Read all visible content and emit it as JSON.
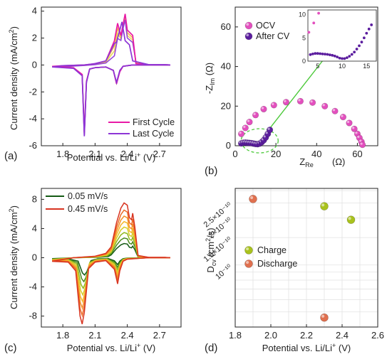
{
  "chart_data": [
    {
      "panel_label": "(a)",
      "type": "line",
      "xlabel": "Potential vs. Li/Li⁺ (V)",
      "ylabel": "Current density (mA/cm²)",
      "xlim": [
        1.6,
        2.9
      ],
      "ylim": [
        -6,
        4.3
      ],
      "xticks": [
        1.8,
        2.1,
        2.4,
        2.7
      ],
      "yticks": [
        -6,
        -4,
        -2,
        0,
        2,
        4
      ],
      "legend": "bottom-right",
      "gradient_colors": [
        "#e81aa6",
        "#f2a640",
        "#e8d84a",
        "#8d35d6"
      ],
      "series": [
        {
          "name": "First Cycle",
          "color": "#e81aa6",
          "x": [
            1.7,
            1.9,
            1.98,
            2.0,
            2.02,
            2.05,
            2.1,
            2.2,
            2.27,
            2.3,
            2.33,
            2.36,
            2.4,
            2.45,
            2.6,
            2.8,
            2.75,
            2.6,
            2.48,
            2.45,
            2.4,
            2.38,
            2.36,
            2.34,
            2.31,
            2.28,
            2.2,
            2.1,
            2.0,
            1.8,
            1.7
          ],
          "y": [
            -0.1,
            -0.2,
            -0.7,
            -5.0,
            -1.2,
            -0.3,
            -0.2,
            -0.15,
            -0.4,
            -1.4,
            -0.5,
            -0.1,
            -0.05,
            0,
            0,
            0,
            0.02,
            0.02,
            0.1,
            2.2,
            2.6,
            3.8,
            3.0,
            2.2,
            3.1,
            1.8,
            0.3,
            0.1,
            0.0,
            -0.05,
            -0.1
          ]
        },
        {
          "name": "Last Cycle",
          "color": "#8d35d6",
          "x": [
            1.7,
            1.9,
            1.98,
            2.0,
            2.02,
            2.05,
            2.1,
            2.2,
            2.27,
            2.3,
            2.33,
            2.36,
            2.4,
            2.45,
            2.6,
            2.8,
            2.75,
            2.6,
            2.45,
            2.42,
            2.38,
            2.35,
            2.33,
            2.3,
            2.28,
            2.2,
            2.1,
            2.0,
            1.8,
            1.7
          ],
          "y": [
            -0.15,
            -0.25,
            -0.8,
            -5.3,
            -1.3,
            -0.3,
            -0.2,
            -0.15,
            -0.4,
            -1.3,
            -0.4,
            -0.1,
            -0.05,
            0,
            0,
            0,
            0.02,
            0.02,
            0.3,
            1.5,
            1.8,
            3.2,
            2.6,
            1.7,
            1.6,
            0.3,
            0.1,
            0.0,
            -0.05,
            -0.15
          ]
        }
      ]
    },
    {
      "panel_label": "(b)",
      "type": "scatter",
      "xlabel": "Z_Re (Ω)",
      "ylabel": "-Z_Im (Ω)",
      "xlim": [
        0,
        70
      ],
      "ylim": [
        0,
        70
      ],
      "xticks": [
        0,
        20,
        40,
        60
      ],
      "yticks": [
        0,
        20,
        40,
        60
      ],
      "legend": "top-left",
      "series": [
        {
          "name": "OCV",
          "color": "#e34fbe",
          "x": [
            3,
            5,
            7,
            10,
            14,
            19,
            25,
            32,
            38,
            44,
            49,
            53,
            56,
            58.5,
            60,
            61,
            62,
            62.5
          ],
          "y": [
            6,
            9,
            12,
            15.5,
            18.5,
            20.5,
            22,
            22.5,
            21.8,
            20,
            17.5,
            14.5,
            11.5,
            8.5,
            6,
            4,
            2,
            0.5
          ]
        },
        {
          "name": "After CV",
          "color": "#5b1d9e",
          "x": [
            3,
            4,
            5,
            6,
            7,
            8,
            9,
            10,
            11,
            12,
            13,
            14,
            15,
            16,
            17
          ],
          "y": [
            1.2,
            1.5,
            1.6,
            1.5,
            1.4,
            1.3,
            1.1,
            0.9,
            0.8,
            1.1,
            1.8,
            2.8,
            4.2,
            6,
            8
          ]
        }
      ],
      "inset": {
        "xlim": [
          3,
          17
        ],
        "ylim": [
          0,
          11
        ],
        "xticks": [
          5,
          10,
          15
        ],
        "yticks": [
          0,
          5,
          10
        ],
        "series": [
          {
            "name": "OCV",
            "color": "#e34fbe",
            "x": [
              3.2,
              4.2,
              5.2
            ],
            "y": [
              6.2,
              8.2,
              10.3
            ]
          },
          {
            "name": "After CV",
            "color": "#5b1d9e",
            "x": [
              3.5,
              4,
              4.5,
              5,
              5.5,
              6,
              6.5,
              7,
              7.5,
              8,
              8.5,
              9,
              9.5,
              10,
              10.5,
              11,
              11.5,
              12,
              12.5,
              13,
              13.5,
              14,
              14.5,
              15,
              15.5,
              16
            ],
            "y": [
              1.4,
              1.55,
              1.65,
              1.65,
              1.6,
              1.55,
              1.5,
              1.45,
              1.35,
              1.25,
              1.1,
              0.9,
              0.65,
              0.55,
              0.55,
              0.75,
              1.05,
              1.45,
              1.95,
              2.6,
              3.3,
              4.1,
              5.0,
              6.0,
              6.9,
              7.8
            ]
          }
        ]
      }
    },
    {
      "panel_label": "(c)",
      "type": "line",
      "xlabel": "Potential vs. Li/Li⁺ (V)",
      "ylabel": "Current density (mA/cm²)",
      "xlim": [
        1.6,
        2.9
      ],
      "ylim": [
        -9.5,
        9.5
      ],
      "xticks": [
        1.8,
        2.1,
        2.4,
        2.7
      ],
      "yticks": [
        -8,
        -4,
        0,
        4,
        8
      ],
      "legend": "top-left",
      "series": [
        {
          "name": "0.05 mV/s",
          "color": "#145a14",
          "scale": 0.26,
          "shift": -0.1
        },
        {
          "name": "",
          "color": "#4a8a1e",
          "scale": 0.36,
          "shift": -0.08
        },
        {
          "name": "",
          "color": "#90b820",
          "scale": 0.46,
          "shift": -0.06
        },
        {
          "name": "",
          "color": "#d6cd2a",
          "scale": 0.56,
          "shift": -0.045
        },
        {
          "name": "",
          "color": "#f5b82a",
          "scale": 0.66,
          "shift": -0.03
        },
        {
          "name": "",
          "color": "#f3922a",
          "scale": 0.76,
          "shift": -0.02
        },
        {
          "name": "",
          "color": "#ec6a24",
          "scale": 0.87,
          "shift": -0.01
        },
        {
          "name": "0.45 mV/s",
          "color": "#d83420",
          "scale": 1.0,
          "shift": 0
        }
      ],
      "base_curve": {
        "x": [
          1.7,
          1.85,
          1.92,
          1.96,
          1.98,
          2.0,
          2.04,
          2.1,
          2.2,
          2.28,
          2.31,
          2.33,
          2.36,
          2.4,
          2.5,
          2.6,
          2.8,
          2.75,
          2.6,
          2.5,
          2.47,
          2.45,
          2.44,
          2.42,
          2.4,
          2.37,
          2.34,
          2.3,
          2.25,
          2.2,
          2.1,
          1.9,
          1.7
        ],
        "y": [
          -0.5,
          -0.6,
          -1.8,
          -8.0,
          -9.1,
          -7.5,
          -1.5,
          -0.6,
          -0.4,
          -1.6,
          -3.6,
          -1.8,
          -0.5,
          -0.2,
          -0.1,
          0,
          0,
          0.05,
          0.05,
          0.3,
          4.2,
          6.1,
          5.2,
          5.5,
          7.2,
          7.5,
          6.8,
          4.8,
          1.5,
          0.6,
          0.2,
          0,
          -0.5
        ]
      }
    },
    {
      "panel_label": "(d)",
      "type": "scatter",
      "xlabel": "Potential vs. Li/Li⁺ (V)",
      "ylabel": "D_cv (cm²/s)",
      "xlim": [
        1.8,
        2.6
      ],
      "xticks": [
        1.8,
        2.0,
        2.2,
        2.4,
        2.6
      ],
      "ylog": true,
      "ylim": [
        4e-11,
        3.1e-10
      ],
      "ytick_values": [
        1e-10,
        1.5e-10,
        2e-10,
        2.5e-10
      ],
      "ytick_labels": [
        "10⁻¹⁰",
        "1.5×10⁻¹⁰",
        "2×10⁻¹⁰",
        "2.5×10⁻¹⁰"
      ],
      "legend": "center-left",
      "series": [
        {
          "name": "Charge",
          "color": "#a9c21d",
          "x": [
            2.3,
            2.45
          ],
          "y": [
            2.38e-10,
            1.95e-10
          ]
        },
        {
          "name": "Discharge",
          "color": "#e0704f",
          "x": [
            1.9,
            2.3
          ],
          "y": [
            2.65e-10,
            4.6e-11
          ]
        }
      ]
    }
  ]
}
